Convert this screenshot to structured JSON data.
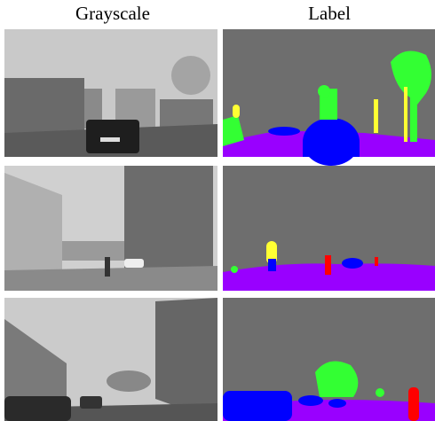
{
  "columns": [
    "Grayscale",
    "Label"
  ]
}
